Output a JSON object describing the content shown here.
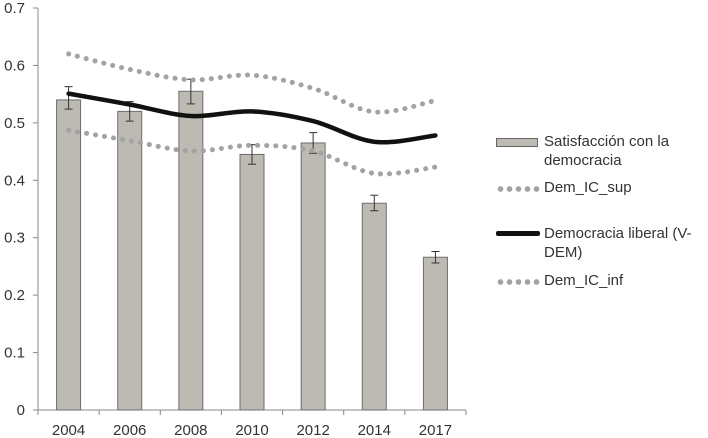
{
  "chart_data": {
    "type": "bar",
    "title": "",
    "xlabel": "",
    "ylabel": "",
    "ylim": [
      0,
      0.7
    ],
    "yticks": [
      "0",
      "0.1",
      "0.2",
      "0.3",
      "0.4",
      "0.5",
      "0.6",
      "0.7"
    ],
    "categories": [
      "2004",
      "2006",
      "2008",
      "2010",
      "2012",
      "2014",
      "2017"
    ],
    "grid": false,
    "legend_position": "right",
    "bar_series": {
      "name": "Satisfacción con la democracia",
      "values": [
        0.54,
        0.52,
        0.555,
        0.445,
        0.465,
        0.36,
        0.266
      ],
      "error_low": [
        0.524,
        0.503,
        0.533,
        0.428,
        0.447,
        0.347,
        0.256
      ],
      "error_high": [
        0.563,
        0.537,
        0.576,
        0.462,
        0.483,
        0.374,
        0.276
      ],
      "color": "#bdbab3"
    },
    "line_series": [
      {
        "name": "Dem_IC_sup",
        "values": [
          0.62,
          0.593,
          0.575,
          0.583,
          0.56,
          0.519,
          0.539
        ],
        "style": "dotted",
        "color": "#a3a3a3"
      },
      {
        "name": "Democracia liberal (V-DEM)",
        "values": [
          0.551,
          0.532,
          0.512,
          0.52,
          0.503,
          0.467,
          0.478
        ],
        "style": "solid",
        "color": "#111111"
      },
      {
        "name": "Dem_IC_inf",
        "values": [
          0.487,
          0.469,
          0.451,
          0.461,
          0.451,
          0.412,
          0.423
        ],
        "style": "dotted",
        "color": "#a3a3a3"
      }
    ],
    "legend": [
      {
        "label": "Satisfacción con la democracia",
        "kind": "bar"
      },
      {
        "label": "Dem_IC_sup",
        "kind": "dotted"
      },
      {
        "label": "Democracia liberal (V-DEM)",
        "kind": "solid"
      },
      {
        "label": "Dem_IC_inf",
        "kind": "dotted"
      }
    ]
  }
}
